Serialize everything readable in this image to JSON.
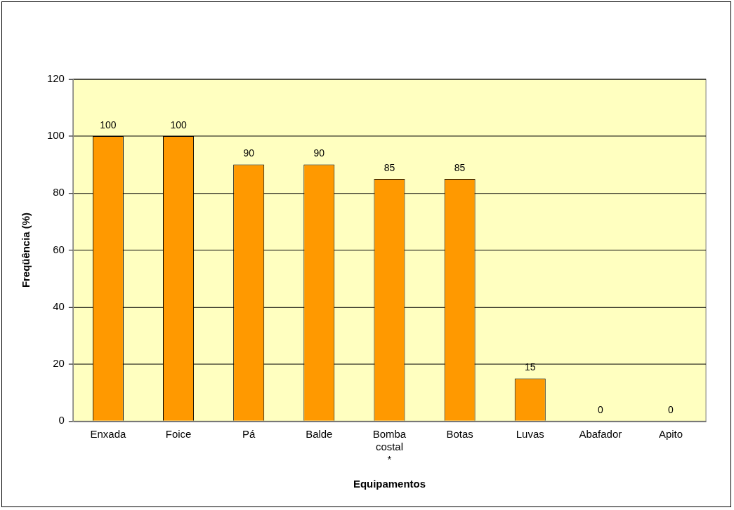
{
  "chart_data": {
    "type": "bar",
    "xlabel": "Equipamentos",
    "ylabel": "Freqüência (%)",
    "categories": [
      "Enxada",
      "Foice",
      "Pá",
      "Balde",
      "Bomba costal *",
      "Botas",
      "Luvas",
      "Abafador",
      "Apito"
    ],
    "values": [
      100,
      100,
      90,
      90,
      85,
      85,
      15,
      0,
      0
    ],
    "color": "#ff9900",
    "ylim": [
      0,
      120
    ],
    "yticks": [
      0,
      20,
      40,
      60,
      80,
      100,
      120
    ],
    "grid": "y",
    "data_labels": true,
    "legend": false
  }
}
